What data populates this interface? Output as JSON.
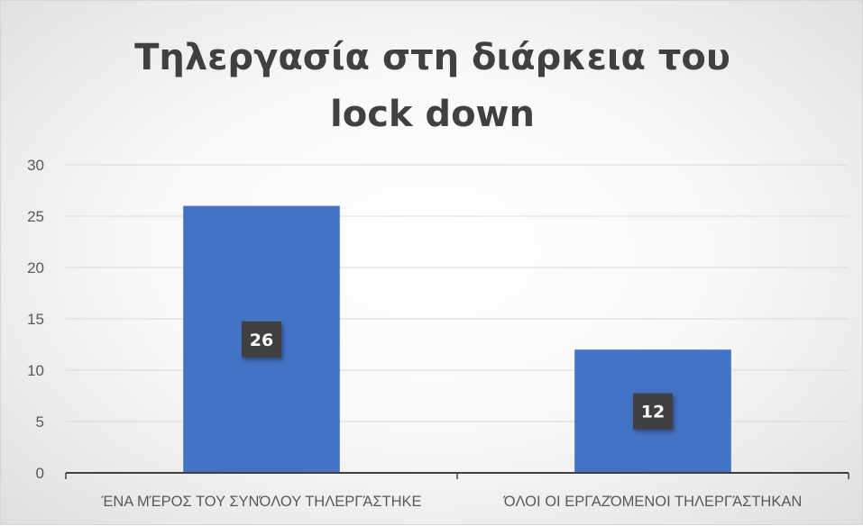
{
  "chart_data": {
    "type": "bar",
    "title_lines": [
      "Τηλεργασία στη διάρκεια του",
      "lock down"
    ],
    "categories": [
      "ΈΝΑ ΜΈΡΟΣ ΤΟΥ ΣΥΝΌΛΟΥ ΤΗΛΕΡΓΆΣΤΗΚΕ",
      "ΌΛΟΙ ΟΙ ΕΡΓΑΖΌΜΕΝΟΙ ΤΗΛΕΡΓΆΣΤΗΚΑΝ"
    ],
    "values": [
      26,
      12
    ],
    "data_labels": [
      "26",
      "12"
    ],
    "ylim": [
      0,
      30
    ],
    "y_ticks": [
      "0",
      "5",
      "10",
      "15",
      "20",
      "25",
      "30"
    ],
    "grid": true,
    "legend": "none",
    "colors": {
      "bar": "#4472c4",
      "grid": "#d9d9d9",
      "axis": "#404040",
      "label_box": "#404040"
    }
  }
}
